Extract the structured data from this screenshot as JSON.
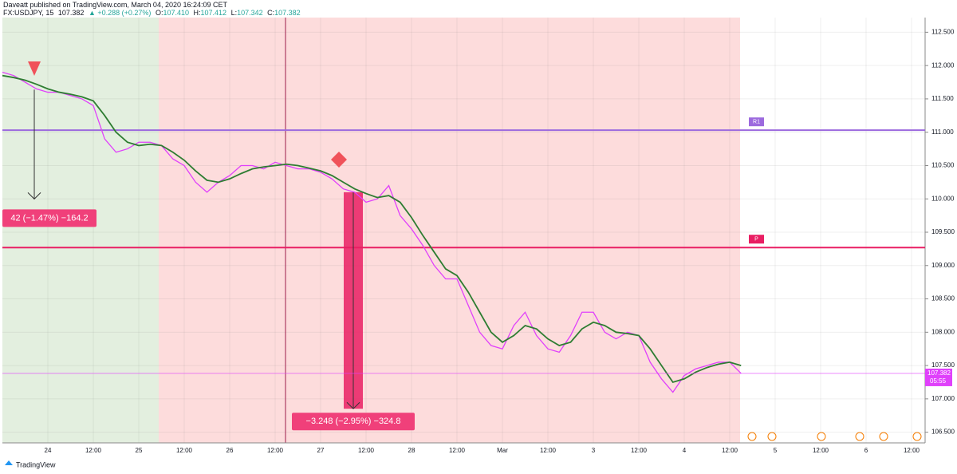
{
  "header": {
    "publisher": "Daveatt published on TradingView.com, March 04, 2020 16:24:09 CET",
    "symbol": "FX:USDJPY, 15",
    "price": "107.382",
    "change": "▲ +0.288 (+0.27%)",
    "o_label": "O:",
    "o": "107.410",
    "h_label": "H:",
    "h": "107.412",
    "l_label": "L:",
    "l": "107.342",
    "c_label": "C:",
    "c": "107.382"
  },
  "footer": "TradingView",
  "chart_data": {
    "type": "line",
    "categories": [
      null,
      null,
      null,
      null,
      "24",
      null,
      null,
      null,
      "12:00",
      null,
      null,
      null,
      "25",
      null,
      null,
      null,
      "12:00",
      null,
      null,
      null,
      "26",
      null,
      null,
      null,
      "12:00",
      null,
      null,
      null,
      "27",
      null,
      null,
      null,
      "12:00",
      null,
      null,
      null,
      "28",
      null,
      null,
      null,
      "12:00",
      null,
      null,
      null,
      "Mar",
      null,
      null,
      null,
      "12:00",
      null,
      null,
      null,
      "3",
      null,
      null,
      null,
      "12:00",
      null,
      null,
      null,
      "4",
      null,
      null,
      null,
      "12:00",
      null,
      null,
      null,
      "5",
      null,
      null,
      null,
      "12:00",
      null,
      null,
      null,
      "6",
      null,
      null,
      null,
      "12:00",
      null
    ],
    "series": [
      {
        "color": "#e040fb",
        "values": [
          111.9,
          111.85,
          111.75,
          111.65,
          111.6,
          111.6,
          111.55,
          111.5,
          111.4,
          110.9,
          110.7,
          110.75,
          110.85,
          110.85,
          110.8,
          110.6,
          110.5,
          110.25,
          110.1,
          110.25,
          110.35,
          110.5,
          110.5,
          110.45,
          110.55,
          110.5,
          110.45,
          110.45,
          110.4,
          110.3,
          110.15,
          110.1,
          109.95,
          110.0,
          110.2,
          109.75,
          109.55,
          109.3,
          109.0,
          108.8,
          108.8,
          108.4,
          108.0,
          107.8,
          107.75,
          108.1,
          108.3,
          107.95,
          107.75,
          107.7,
          107.95,
          108.3,
          108.3,
          108.0,
          107.9,
          108.0,
          107.95,
          107.55,
          107.3,
          107.1,
          107.35,
          107.45,
          107.5,
          107.55,
          107.55,
          107.382,
          null,
          null,
          null,
          null,
          null,
          null,
          null,
          null,
          null,
          null,
          null,
          null,
          null,
          null,
          null,
          null
        ]
      },
      {
        "color": "#2e7d32",
        "values": [
          111.85,
          111.82,
          111.78,
          111.72,
          111.65,
          111.6,
          111.57,
          111.53,
          111.47,
          111.25,
          111.0,
          110.85,
          110.8,
          110.82,
          110.8,
          110.7,
          110.58,
          110.42,
          110.28,
          110.25,
          110.3,
          110.38,
          110.45,
          110.48,
          110.5,
          110.52,
          110.5,
          110.46,
          110.42,
          110.35,
          110.25,
          110.15,
          110.08,
          110.02,
          110.05,
          109.95,
          109.72,
          109.45,
          109.2,
          108.95,
          108.85,
          108.6,
          108.3,
          108.0,
          107.85,
          107.95,
          108.1,
          108.05,
          107.9,
          107.8,
          107.85,
          108.05,
          108.15,
          108.1,
          108.0,
          107.98,
          107.95,
          107.75,
          107.5,
          107.25,
          107.3,
          107.4,
          107.47,
          107.52,
          107.55,
          107.5,
          null,
          null,
          null,
          null,
          null,
          null,
          null,
          null,
          null,
          null,
          null,
          null,
          null,
          null,
          null,
          null
        ]
      }
    ],
    "ylim": [
      106.34,
      112.72
    ],
    "yticks": [
      {
        "value": 112.5,
        "label": "112.500"
      },
      {
        "value": 112,
        "label": "112.000"
      },
      {
        "value": 111.5,
        "label": "111.500"
      },
      {
        "value": 111,
        "label": "111.000"
      },
      {
        "value": 110.5,
        "label": "110.500"
      },
      {
        "value": 110,
        "label": "110.000"
      },
      {
        "value": 109.5,
        "label": "109.500"
      },
      {
        "value": 109,
        "label": "109.000"
      },
      {
        "value": 108.5,
        "label": "108.500"
      },
      {
        "value": 108,
        "label": "108.000"
      },
      {
        "value": 107.5,
        "label": "107.500"
      },
      {
        "value": 107,
        "label": "107.000"
      },
      {
        "value": 106.5,
        "label": "106.500"
      }
    ],
    "grid": true,
    "levels": [
      {
        "label": "R1",
        "value": 111.03,
        "color": "#9c6ade"
      },
      {
        "label": "P",
        "value": 109.27,
        "color": "#e91e63"
      }
    ],
    "last_price": {
      "value": 107.382,
      "label": "107.382",
      "countdown": "05:55"
    },
    "measurements": [
      {
        "label": "42 (−1.47%) −164.2",
        "from": 111.64,
        "to": 109.998
      },
      {
        "label": "−3.248 (−2.95%) −324.8",
        "from": 110.1,
        "to": 106.852
      }
    ]
  }
}
